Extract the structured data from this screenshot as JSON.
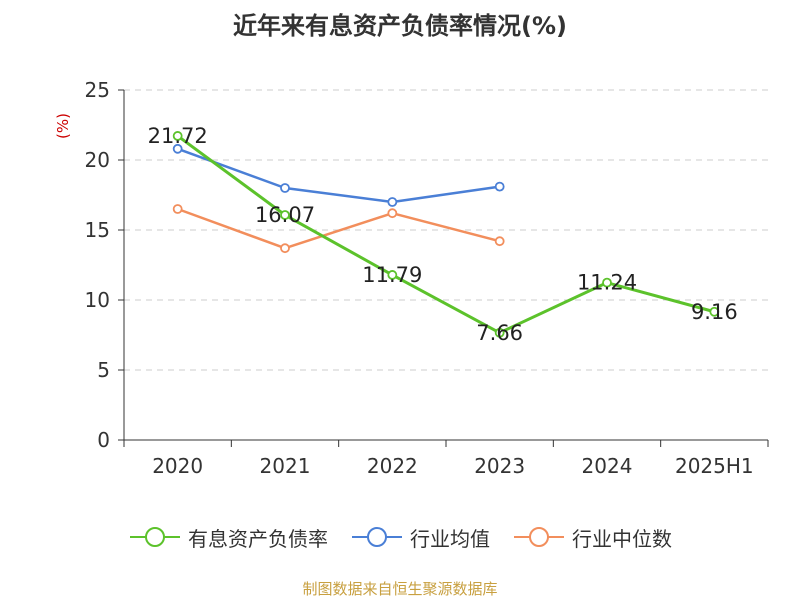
{
  "colors": {
    "series": [
      "#5cc22b",
      "#4a7fd6",
      "#f28e5c"
    ],
    "ylabel": "#cc0000",
    "source": "#c8a040",
    "grid": "#cccccc",
    "axis": "#333333"
  },
  "source_note": "制图数据来自恒生聚源数据库",
  "chart_data": {
    "type": "line",
    "title": "近年来有息资产负债率情况(%)",
    "xlabel": "",
    "ylabel": "(%)",
    "categories": [
      "2020",
      "2021",
      "2022",
      "2023",
      "2024",
      "2025H1"
    ],
    "ylim": [
      0,
      25
    ],
    "yticks": [
      0,
      5,
      10,
      15,
      20,
      25
    ],
    "grid": "horizontal dashed",
    "legend_position": "bottom",
    "series": [
      {
        "name": "有息资产负债率",
        "values": [
          21.72,
          16.07,
          11.79,
          7.66,
          11.24,
          9.16
        ],
        "labels": [
          "21.72",
          "16.07",
          "11.79",
          "7.66",
          "11.24",
          "9.16"
        ]
      },
      {
        "name": "行业均值",
        "values": [
          20.8,
          18.0,
          17.0,
          18.1,
          null,
          null
        ]
      },
      {
        "name": "行业中位数",
        "values": [
          16.5,
          13.7,
          16.2,
          14.2,
          null,
          null
        ]
      }
    ]
  }
}
